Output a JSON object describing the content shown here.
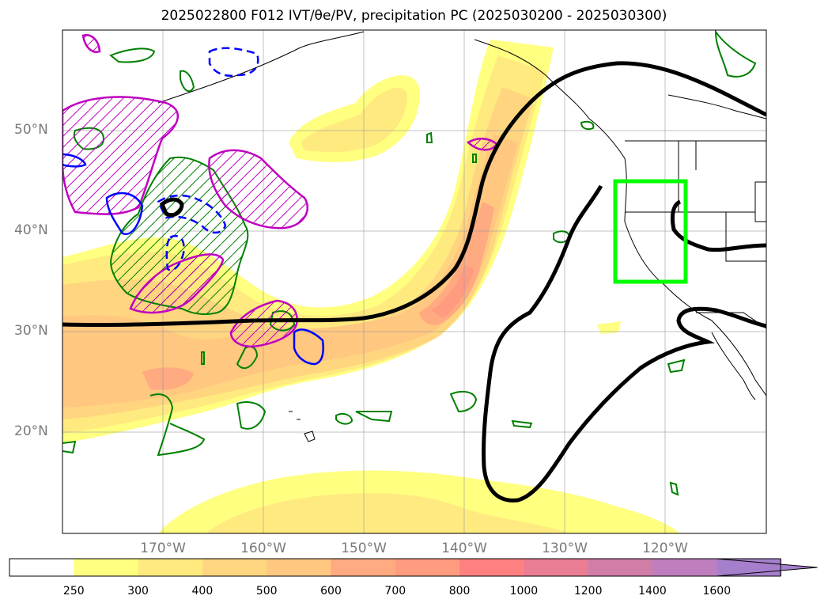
{
  "title": "2025022800 F012 IVT/θe/PV, precipitation PC (2025030200 - 2025030300)",
  "lat_labels": [
    {
      "lat": 50,
      "label": "50°N"
    },
    {
      "lat": 40,
      "label": "40°N"
    },
    {
      "lat": 30,
      "label": "30°N"
    },
    {
      "lat": 20,
      "label": "20°N"
    }
  ],
  "lon_labels": [
    {
      "lon": -170,
      "label": "170°W"
    },
    {
      "lon": -160,
      "label": "160°W"
    },
    {
      "lon": -150,
      "label": "150°W"
    },
    {
      "lon": -140,
      "label": "140°W"
    },
    {
      "lon": -130,
      "label": "130°W"
    },
    {
      "lon": -120,
      "label": "120°W"
    }
  ],
  "colorbar": {
    "levels": [
      "250",
      "300",
      "400",
      "500",
      "600",
      "700",
      "800",
      "1000",
      "1200",
      "1400",
      "1600"
    ],
    "colors": [
      "#ffffff",
      "#ffff80",
      "#ffea80",
      "#ffd580",
      "#ffc780",
      "#ffaa80",
      "#ff9c80",
      "#ff8080",
      "#e87d94",
      "#d07da8",
      "#bf7fbf",
      "#a67fcc"
    ],
    "extend": "max"
  },
  "colors": {
    "theta_e_contour": "#000000",
    "pv_positive": "#c000c0",
    "pv_negative": "#0000ff",
    "precip_contour": "#008000",
    "region_box": "#00ff00",
    "coastline": "#000000",
    "gridline": "#999999"
  },
  "region_box": {
    "lon_min": -125,
    "lon_max": -118,
    "lat_min": 35,
    "lat_max": 45
  }
}
